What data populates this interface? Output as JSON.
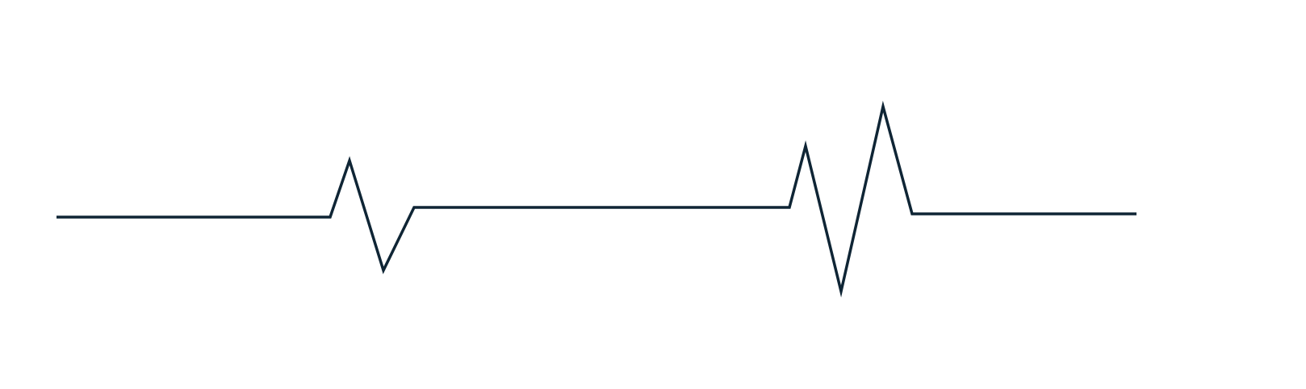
{
  "graphic": {
    "kind": "single line waveform",
    "colors": {
      "background": "#ffffff",
      "line": "#0f2535"
    }
  }
}
